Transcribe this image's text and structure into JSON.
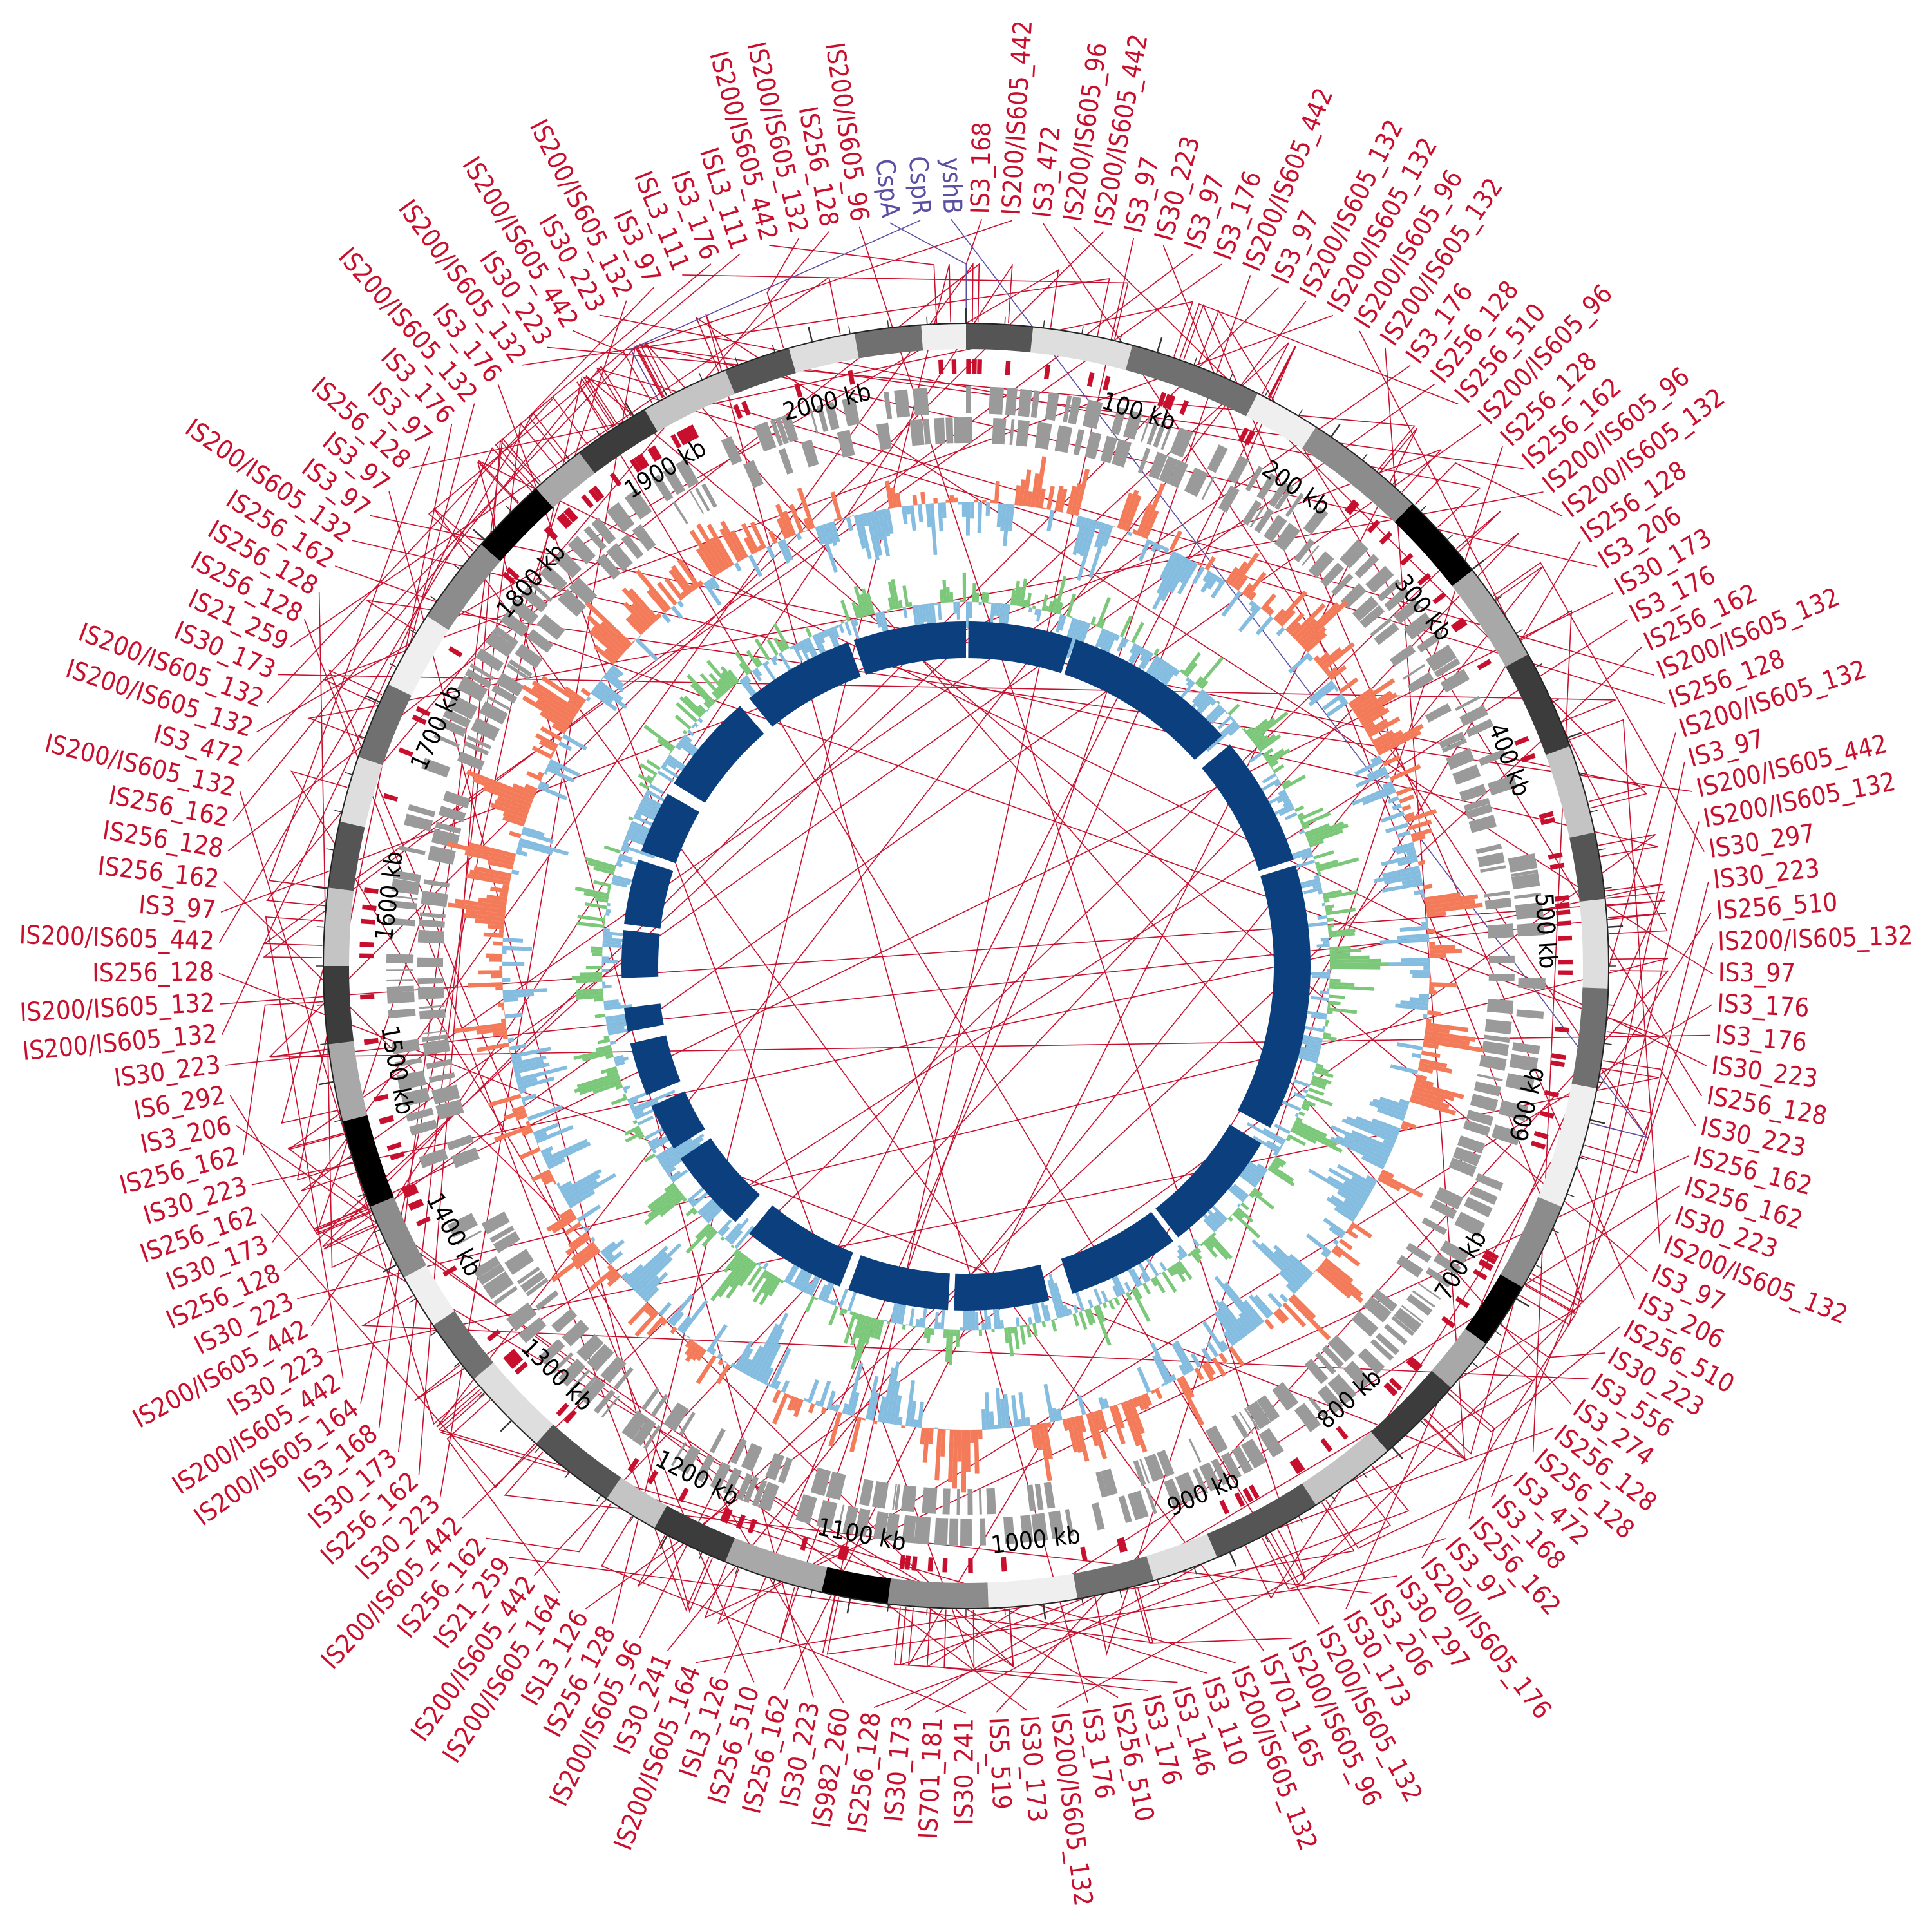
{
  "figure": {
    "type": "circular-genome-map",
    "genome_length_kb": 2080,
    "colors": {
      "is_label": "#c8102e",
      "gene_label": "#5a4fa3",
      "track_gray": "#9a9a9a",
      "gc_skew_pos": "#f47b5a",
      "gc_skew_neg": "#84bde0",
      "gc_content": "#7cc87a",
      "inner_ring": "#0c3f7e"
    },
    "ticks": [
      "100 kb",
      "200 kb",
      "300 kb",
      "400 kb",
      "500 kb",
      "600 kb",
      "700 kb",
      "800 kb",
      "900 kb",
      "1000 kb",
      "1100 kb",
      "1200 kb",
      "1300 kb",
      "1400 kb",
      "1500 kb",
      "1600 kb",
      "1700 kb",
      "1800 kb",
      "1900 kb",
      "2000 kb"
    ],
    "gene_labels": [
      "CspA",
      "CspR",
      "yshB"
    ],
    "is_labels": [
      "IS3_168",
      "IS200/IS605_442",
      "IS3_472",
      "IS200/IS605_96",
      "IS200/IS605_442",
      "IS3_97",
      "IS30_223",
      "IS3_97",
      "IS3_176",
      "IS200/IS605_442",
      "IS3_97",
      "IS200/IS605_132",
      "IS200/IS605_132",
      "IS200/IS605_96",
      "IS200/IS605_132",
      "IS3_176",
      "IS256_128",
      "IS256_510",
      "IS200/IS605_96",
      "IS256_128",
      "IS256_162",
      "IS200/IS605_96",
      "IS200/IS605_132",
      "IS256_128",
      "IS3_206",
      "IS30_173",
      "IS3_176",
      "IS256_162",
      "IS200/IS605_132",
      "IS256_128",
      "IS200/IS605_132",
      "IS3_97",
      "IS200/IS605_442",
      "IS200/IS605_132",
      "IS30_297",
      "IS30_223",
      "IS256_510",
      "IS200/IS605_132",
      "IS3_97",
      "IS3_176",
      "IS3_176",
      "IS30_223",
      "IS256_128",
      "IS30_223",
      "IS256_162",
      "IS256_162",
      "IS30_223",
      "IS200/IS605_132",
      "IS3_97",
      "IS3_206",
      "IS256_510",
      "IS30_223",
      "IS3_556",
      "IS3_274",
      "IS256_128",
      "IS256_128",
      "IS3_472",
      "IS3_168",
      "IS256_162",
      "IS3_97",
      "IS200/IS605_176",
      "IS30_297",
      "IS3_206",
      "IS30_173",
      "IS200/IS605_132",
      "IS200/IS605_96",
      "IS701_165",
      "IS200/IS605_132",
      "IS3_110",
      "IS3_146",
      "IS3_176",
      "IS256_510",
      "IS3_176",
      "IS200/IS605_132",
      "IS30_173",
      "IS5_519",
      "IS30_241",
      "IS701_181",
      "IS30_173",
      "IS256_128",
      "IS982_260",
      "IS30_223",
      "IS256_162",
      "IS256_510",
      "ISL3_126",
      "IS200/IS605_164",
      "IS30_241",
      "IS200/IS605_96",
      "IS256_128",
      "ISL3_126",
      "IS200/IS605_164",
      "IS200/IS605_442",
      "IS21_259",
      "IS256_162",
      "IS200/IS605_442",
      "IS30_223",
      "IS256_162",
      "IS30_173",
      "IS3_168",
      "IS200/IS605_164",
      "IS200/IS605_442",
      "IS30_223",
      "IS200/IS605_442",
      "IS30_223",
      "IS256_128",
      "IS30_173",
      "IS256_162",
      "IS30_223",
      "IS256_162",
      "IS3_206",
      "IS6_292",
      "IS30_223",
      "IS200/IS605_132",
      "IS200/IS605_132",
      "IS256_128",
      "IS200/IS605_442",
      "IS3_97",
      "IS256_162",
      "IS256_128",
      "IS256_162",
      "IS200/IS605_132",
      "IS3_472",
      "IS200/IS605_132",
      "IS200/IS605_132",
      "IS30_173",
      "IS21_259",
      "IS256_128",
      "IS256_128",
      "IS256_162",
      "IS200/IS605_132",
      "IS3_97",
      "IS3_97",
      "IS256_128",
      "IS3_97",
      "IS3_176",
      "IS200/IS605_132",
      "IS3_176",
      "IS200/IS605_132",
      "IS30_223",
      "IS200/IS605_442",
      "IS30_223",
      "IS200/IS605_132",
      "IS3_97",
      "ISL3_111",
      "IS3_176",
      "ISL3_111",
      "IS200/IS605_442",
      "IS200/IS605_132",
      "IS256_128",
      "IS200/IS605_96"
    ]
  }
}
